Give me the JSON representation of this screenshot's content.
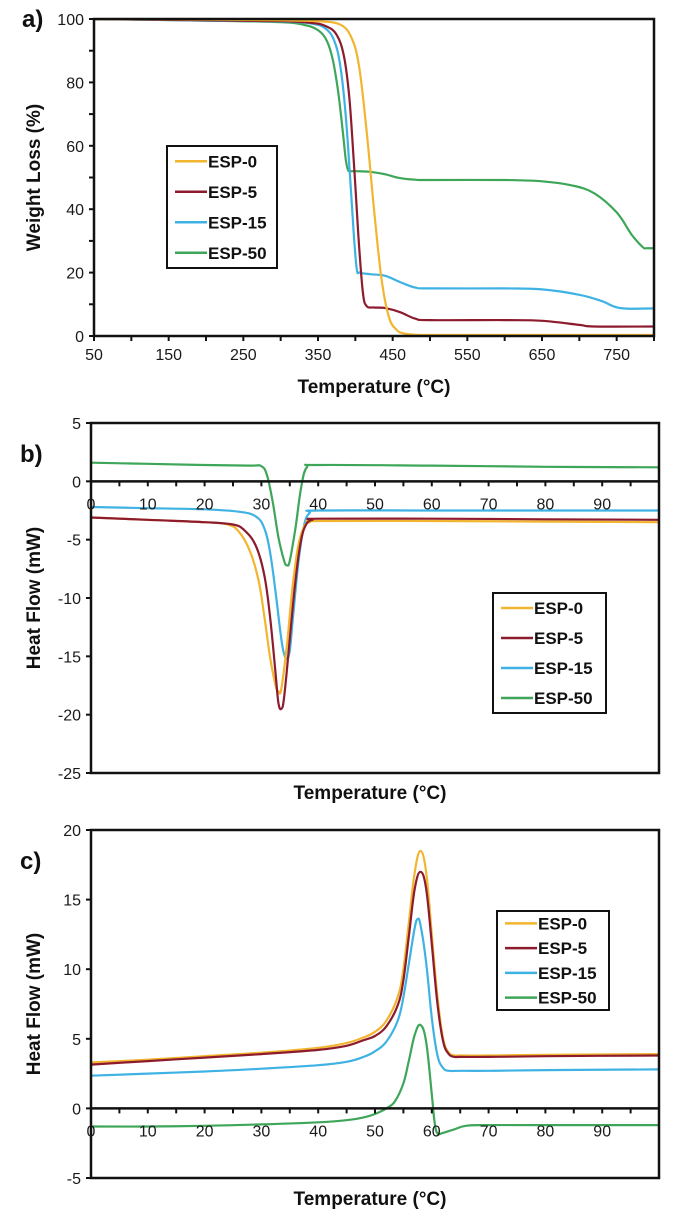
{
  "series_colors": {
    "ESP-0": "#F2B52F",
    "ESP-5": "#8C1B2E",
    "ESP-15": "#3FB2E4",
    "ESP-50": "#3DA658"
  },
  "chart_data": [
    {
      "id": "a",
      "panel_label": "a)",
      "type": "line",
      "title": "",
      "xlabel": "Temperature (°C)",
      "ylabel": "Weight Loss (%)",
      "xlim": [
        50,
        800
      ],
      "ylim": [
        0,
        100
      ],
      "xticks": [
        50,
        150,
        250,
        350,
        450,
        550,
        650,
        750
      ],
      "yticks": [
        0,
        20,
        40,
        60,
        80,
        100
      ],
      "legend": {
        "placement": "center-left",
        "entries": [
          "ESP-0",
          "ESP-5",
          "ESP-15",
          "ESP-50"
        ]
      },
      "grid": false,
      "series": [
        {
          "name": "ESP-0",
          "x": [
            50,
            200,
            300,
            350,
            380,
            395,
            405,
            415,
            425,
            435,
            445,
            455,
            465,
            480,
            500,
            600,
            700,
            800
          ],
          "y": [
            100,
            99.8,
            99.6,
            99.3,
            98.2,
            94,
            85,
            65,
            40,
            18,
            6,
            2,
            0.8,
            0.4,
            0.3,
            0.3,
            0.3,
            0.3
          ]
        },
        {
          "name": "ESP-5",
          "x": [
            50,
            200,
            300,
            340,
            360,
            375,
            385,
            392,
            398,
            404,
            410,
            415,
            425,
            440,
            460,
            480,
            500,
            600,
            650,
            700,
            720,
            800
          ],
          "y": [
            100,
            99.6,
            99.3,
            98.8,
            97.8,
            95,
            88,
            75,
            55,
            32,
            14,
            9.5,
            9,
            8.8,
            7.5,
            5.5,
            5,
            5,
            4.8,
            3.5,
            3,
            3
          ]
        },
        {
          "name": "ESP-15",
          "x": [
            50,
            200,
            300,
            340,
            360,
            372,
            380,
            387,
            393,
            398,
            402,
            406,
            420,
            440,
            460,
            480,
            500,
            600,
            650,
            700,
            730,
            755,
            800
          ],
          "y": [
            100,
            99.5,
            99.2,
            98.6,
            97,
            93,
            85,
            70,
            50,
            32,
            21,
            20,
            19.5,
            19,
            17,
            15.3,
            15,
            15,
            14.7,
            13,
            11,
            8.8,
            8.7
          ]
        },
        {
          "name": "ESP-50",
          "x": [
            50,
            200,
            300,
            330,
            350,
            362,
            370,
            377,
            383,
            387,
            390,
            393,
            400,
            420,
            440,
            460,
            480,
            500,
            600,
            650,
            690,
            720,
            750,
            770,
            785,
            790,
            800
          ],
          "y": [
            100,
            99.5,
            99,
            98.2,
            96.5,
            93,
            87,
            77,
            65,
            56,
            52.5,
            52,
            52,
            51.8,
            51,
            49.8,
            49.3,
            49.2,
            49.2,
            48.8,
            47.5,
            45,
            39,
            32,
            28,
            27.7,
            27.7
          ]
        }
      ]
    },
    {
      "id": "b",
      "panel_label": "b)",
      "type": "line",
      "title": "",
      "xlabel": "Temperature (°C)",
      "ylabel": "Heat Flow (mW)",
      "xlim": [
        0,
        100
      ],
      "ylim": [
        -25,
        5
      ],
      "xticks": [
        0,
        10,
        20,
        30,
        40,
        50,
        60,
        70,
        80,
        90
      ],
      "yticks": [
        -25,
        -20,
        -15,
        -10,
        -5,
        0,
        5
      ],
      "legend": {
        "placement": "bottom-right",
        "entries": [
          "ESP-0",
          "ESP-5",
          "ESP-15",
          "ESP-50"
        ]
      },
      "grid": false,
      "series": [
        {
          "name": "ESP-0",
          "x": [
            0,
            10,
            20,
            24,
            26,
            28,
            29.5,
            30.5,
            31.5,
            32.5,
            33,
            33.5,
            34.5,
            35.5,
            36.5,
            37.5,
            38.5,
            40,
            60,
            80,
            100
          ],
          "y": [
            -3.1,
            -3.3,
            -3.5,
            -3.7,
            -4.3,
            -6,
            -8.5,
            -11.5,
            -15,
            -17.5,
            -18,
            -17.8,
            -14,
            -9,
            -5.5,
            -3.9,
            -3.5,
            -3.4,
            -3.4,
            -3.45,
            -3.5
          ]
        },
        {
          "name": "ESP-5",
          "x": [
            0,
            10,
            20,
            25,
            27,
            29,
            30.5,
            31.5,
            32.5,
            33,
            33.5,
            34,
            35,
            36,
            37,
            38,
            39,
            40,
            60,
            80,
            100
          ],
          "y": [
            -3.1,
            -3.3,
            -3.5,
            -3.7,
            -4.2,
            -5.5,
            -8,
            -11.5,
            -16.5,
            -19,
            -19.5,
            -18.5,
            -13.5,
            -8.5,
            -5,
            -3.6,
            -3.3,
            -3.2,
            -3.2,
            -3.25,
            -3.3
          ]
        },
        {
          "name": "ESP-15",
          "x": [
            0,
            10,
            20,
            26,
            29,
            30.5,
            31.5,
            32.5,
            33.5,
            34,
            34.5,
            35,
            35.5,
            36.5,
            37.5,
            38.5,
            40,
            60,
            80,
            100
          ],
          "y": [
            -2.2,
            -2.3,
            -2.4,
            -2.6,
            -3,
            -4,
            -6,
            -9.5,
            -13.5,
            -14.8,
            -15.2,
            -14.5,
            -12,
            -7,
            -3.8,
            -2.7,
            -2.5,
            -2.5,
            -2.5,
            -2.5
          ]
        },
        {
          "name": "ESP-50",
          "x": [
            0,
            10,
            20,
            28,
            30,
            31,
            32,
            33,
            34,
            34.5,
            35,
            36,
            37,
            38,
            40,
            60,
            80,
            100
          ],
          "y": [
            1.6,
            1.5,
            1.4,
            1.35,
            1.3,
            0.5,
            -1.8,
            -4.8,
            -6.8,
            -7.2,
            -6.8,
            -4,
            -0.5,
            1.2,
            1.4,
            1.35,
            1.25,
            1.2
          ]
        }
      ]
    },
    {
      "id": "c",
      "panel_label": "c)",
      "type": "line",
      "title": "",
      "xlabel": "Temperature (°C)",
      "ylabel": "Heat Flow (mW)",
      "xlim": [
        0,
        100
      ],
      "ylim": [
        -5,
        20
      ],
      "xticks": [
        0,
        10,
        20,
        30,
        40,
        50,
        60,
        70,
        80,
        90
      ],
      "yticks": [
        -5,
        0,
        5,
        10,
        15,
        20
      ],
      "legend": {
        "placement": "top-right",
        "entries": [
          "ESP-0",
          "ESP-5",
          "ESP-15",
          "ESP-50"
        ]
      },
      "grid": false,
      "series": [
        {
          "name": "ESP-0",
          "x": [
            0,
            10,
            20,
            30,
            40,
            45,
            48,
            50,
            52,
            54,
            55,
            56,
            57,
            58,
            59,
            60,
            61,
            62,
            63,
            64,
            65,
            70,
            80,
            100
          ],
          "y": [
            3.3,
            3.5,
            3.75,
            4.0,
            4.35,
            4.7,
            5.1,
            5.5,
            6.3,
            8,
            10,
            13.5,
            17,
            18.5,
            17,
            12.5,
            8,
            5,
            4,
            3.8,
            3.8,
            3.8,
            3.85,
            3.9
          ]
        },
        {
          "name": "ESP-5",
          "x": [
            0,
            10,
            20,
            30,
            40,
            45,
            48,
            50,
            52,
            54,
            55,
            56,
            57,
            58,
            59,
            60,
            61,
            62,
            63,
            64,
            65,
            70,
            80,
            100
          ],
          "y": [
            3.15,
            3.4,
            3.65,
            3.9,
            4.2,
            4.5,
            4.9,
            5.2,
            5.9,
            7.4,
            9.2,
            12.5,
            15.8,
            17.0,
            15.8,
            11.8,
            7.5,
            4.8,
            3.9,
            3.7,
            3.7,
            3.7,
            3.75,
            3.8
          ]
        },
        {
          "name": "ESP-15",
          "x": [
            0,
            10,
            20,
            30,
            40,
            45,
            48,
            50,
            52,
            54,
            55,
            56,
            57,
            57.5,
            58,
            59,
            60,
            61,
            62,
            63,
            65,
            70,
            80,
            100
          ],
          "y": [
            2.35,
            2.5,
            2.65,
            2.85,
            3.1,
            3.35,
            3.7,
            4.1,
            4.8,
            6.3,
            8.0,
            10.5,
            13,
            13.6,
            13.2,
            10.5,
            6.5,
            3.8,
            2.9,
            2.7,
            2.7,
            2.7,
            2.75,
            2.8
          ]
        },
        {
          "name": "ESP-50",
          "x": [
            0,
            10,
            20,
            30,
            40,
            45,
            48,
            50,
            52,
            53.5,
            55,
            56,
            57,
            58,
            59,
            60,
            60.5,
            61,
            62,
            64,
            66,
            70,
            80,
            100
          ],
          "y": [
            -1.3,
            -1.3,
            -1.25,
            -1.15,
            -1.0,
            -0.85,
            -0.65,
            -0.4,
            0.0,
            0.5,
            1.8,
            3.5,
            5.3,
            6.0,
            4.8,
            1.0,
            -1.0,
            -1.8,
            -1.75,
            -1.5,
            -1.25,
            -1.2,
            -1.2,
            -1.2
          ]
        }
      ]
    }
  ]
}
